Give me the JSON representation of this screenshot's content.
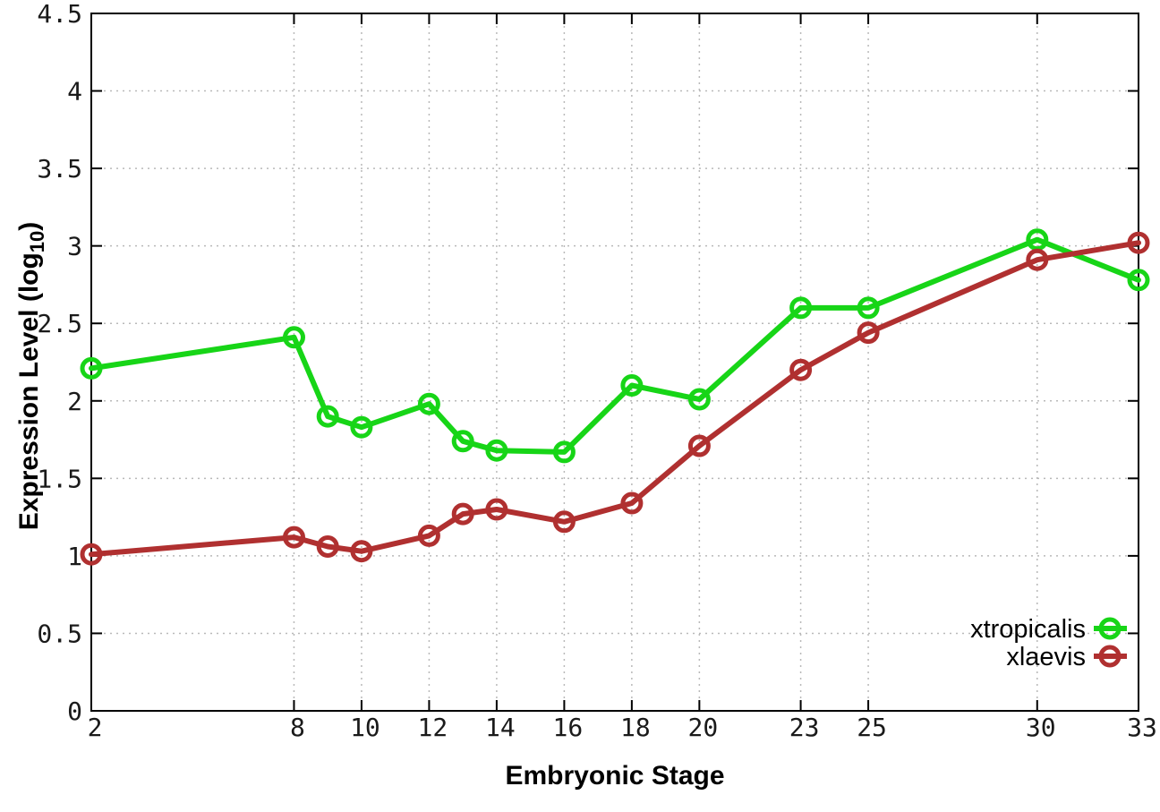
{
  "chart_data": {
    "type": "line",
    "title": "",
    "xlabel": "Embryonic Stage",
    "ylabel": {
      "main": "Expression Level (log",
      "sub": "10",
      "end": ")"
    },
    "xlim": [
      2,
      33
    ],
    "ylim": [
      0,
      4.5
    ],
    "grid": true,
    "legend_position": "bottom-right",
    "x": [
      2,
      8,
      9,
      10,
      12,
      13,
      14,
      16,
      18,
      20,
      23,
      25,
      30,
      33
    ],
    "xticks": [
      2,
      8,
      10,
      12,
      14,
      16,
      18,
      20,
      23,
      25,
      30,
      33
    ],
    "xtick_labels": [
      "2",
      "8",
      "10",
      "12",
      "14",
      "16",
      "18",
      "20",
      "23",
      "25",
      "30",
      "33"
    ],
    "yticks": [
      0,
      0.5,
      1,
      1.5,
      2,
      2.5,
      3,
      3.5,
      4,
      4.5
    ],
    "ytick_labels": [
      "0",
      "0.5",
      "1",
      "1.5",
      "2",
      "2.5",
      "3",
      "3.5",
      "4",
      "4.5"
    ],
    "series": [
      {
        "name": "xtropicalis",
        "color": "#17d517",
        "values": [
          2.21,
          2.41,
          1.9,
          1.83,
          1.98,
          1.74,
          1.68,
          1.67,
          2.1,
          2.01,
          2.6,
          2.6,
          3.04,
          2.78
        ]
      },
      {
        "name": "xlaevis",
        "color": "#b03030",
        "values": [
          1.01,
          1.12,
          1.06,
          1.03,
          1.13,
          1.27,
          1.3,
          1.22,
          1.34,
          1.71,
          2.2,
          2.44,
          2.91,
          3.02
        ]
      }
    ]
  }
}
